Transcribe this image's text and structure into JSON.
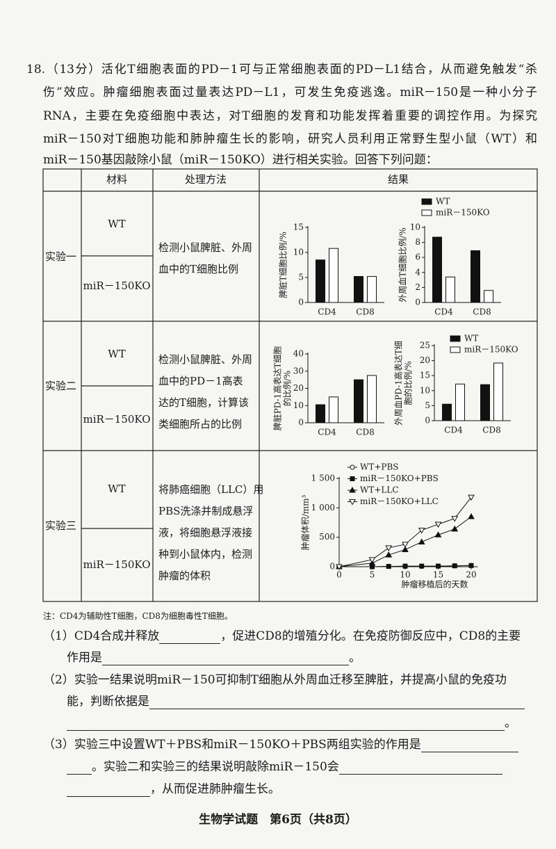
{
  "intro": [
    "18.（13分）活化T细胞表面的PD－1可与正常细胞表面的PD－L1结合，从而避免触发“杀",
    "伤”效应。肿瘤细胞表面过量表达PD－L1，可发生免疫逃逸。miR－150是一种小分子",
    "RNA，主要在免疫细胞中表达，对T细胞的发育和功能发挥着重要的调控作用。为探究",
    "miR－150对T细胞功能和肺肿瘤生长的影响，研究人员利用正常野生型小鼠（WT）和",
    "miR－150基因敲除小鼠（miR－150KO）进行相关实验。回答下列问题："
  ],
  "table": {
    "headers": [
      "材料",
      "处理方法",
      "结果"
    ],
    "experiments": [
      {
        "name": "实验一",
        "materials": [
          "WT",
          "miR－150KO"
        ],
        "method": [
          "检测小鼠脾脏、外周",
          "血中的T细胞比例"
        ],
        "legend": [
          "WT",
          "miR－150KO"
        ],
        "charts": [
          {
            "type": "bar",
            "ylabel": [
              "脾脏T细胞比例/%"
            ],
            "categories": [
              "CD4",
              "CD8"
            ],
            "series": [
              {
                "color": "#111111",
                "values": [
                  8.5,
                  5.2
                ]
              },
              {
                "color": "#ffffff",
                "values": [
                  10.8,
                  5.2
                ]
              }
            ],
            "ylim": [
              0,
              15
            ],
            "yticks": [
              0,
              5,
              10,
              15
            ]
          },
          {
            "type": "bar",
            "ylabel": [
              "外周血T细胞比例/%"
            ],
            "categories": [
              "CD4",
              "CD8"
            ],
            "series": [
              {
                "color": "#111111",
                "values": [
                  8.7,
                  6.9
                ]
              },
              {
                "color": "#ffffff",
                "values": [
                  3.4,
                  1.6
                ]
              }
            ],
            "ylim": [
              0,
              10
            ],
            "yticks": [
              0,
              2,
              4,
              6,
              8,
              10
            ]
          }
        ]
      },
      {
        "name": "实验二",
        "materials": [
          "WT",
          "miR－150KO"
        ],
        "method": [
          "检测小鼠脾脏、外周",
          "血中的PD－1高表",
          "达的T细胞，计算该",
          "类细胞所占的比例"
        ],
        "legend": [
          "WT",
          "miR－150KO"
        ],
        "charts": [
          {
            "type": "bar",
            "ylabel": [
              "脾脏PD-1高表达T细胞",
              "的比例/%"
            ],
            "categories": [
              "CD4",
              "CD8"
            ],
            "series": [
              {
                "color": "#111111",
                "values": [
                  10.5,
                  25
                ]
              },
              {
                "color": "#ffffff",
                "values": [
                  15,
                  27.5
                ]
              }
            ],
            "ylim": [
              0,
              40
            ],
            "yticks": [
              0,
              10,
              20,
              30,
              40
            ]
          },
          {
            "type": "bar",
            "ylabel": [
              "外周血PD-1高表达T细",
              "胞的比例/%"
            ],
            "categories": [
              "CD4",
              "CD8"
            ],
            "series": [
              {
                "color": "#111111",
                "values": [
                  5.5,
                  12
                ]
              },
              {
                "color": "#ffffff",
                "values": [
                  12.2,
                  19.2
                ]
              }
            ],
            "ylim": [
              0,
              25
            ],
            "yticks": [
              0,
              5,
              10,
              15,
              20,
              25
            ]
          }
        ]
      },
      {
        "name": "实验三",
        "materials": [
          "WT",
          "miR－150KO"
        ],
        "method": [
          "将肺癌细胞（LLC）用",
          "PBS洗涤并制成悬浮",
          "液，将细胞悬浮液接",
          "种到小鼠体内，检测",
          "肿瘤的体积"
        ],
        "charts": [
          {
            "type": "line",
            "ylabel": [
              "肿瘤体积/mm³"
            ],
            "xlabel": "肿瘤移植后的天数",
            "color": "#111111",
            "x": [
              0,
              5,
              7.5,
              10,
              12.5,
              15,
              17.5,
              20
            ],
            "series": [
              {
                "name": "WT+PBS",
                "marker": "circle-open",
                "values": [
                  0,
                  0,
                  5,
                  5,
                  5,
                  10,
                  15,
                  20
                ]
              },
              {
                "name": "miR－150KO+PBS",
                "marker": "square",
                "values": [
                  0,
                  0,
                  5,
                  10,
                  10,
                  10,
                  15,
                  20
                ]
              },
              {
                "name": "WT+LLC",
                "marker": "triangle",
                "values": [
                  0,
                  60,
                  200,
                  290,
                  420,
                  540,
                  640,
                  850
                ]
              },
              {
                "name": "miR－150KO+LLC",
                "marker": "triangle-down-open",
                "values": [
                  0,
                  120,
                  320,
                  380,
                  620,
                  720,
                  820,
                  1180
                ]
              }
            ],
            "xlim": [
              0,
              21
            ],
            "xticks": [
              0,
              5,
              10,
              15,
              20
            ],
            "ylim": [
              0,
              1500
            ],
            "yticks": [
              0,
              500,
              {
                "value": 1000,
                "label": "1 000"
              },
              {
                "value": 1500,
                "label": "1 500"
              }
            ]
          }
        ]
      }
    ]
  },
  "note": "注：CD4为辅助性T细胞，CD8为细胞毒性T细胞。",
  "questions": {
    "q1": [
      "（1）CD4合成并释放",
      "，促进CD8的增殖分化。在免疫防御反应中，CD8的主要",
      "作用是",
      "。"
    ],
    "q2": [
      "（2）实验一结果说明miR－150可抑制T细胞从外周血迁移至脾脏，并提高小鼠的免疫功",
      "能，判断依据是",
      "。"
    ],
    "q3": [
      "（3）实验三中设置WT＋PBS和miR－150KO＋PBS两组实验的作用是",
      "。实验二和实验三的结果说明敲除miR－150会",
      "，从而促进肺肿瘤生长。"
    ]
  },
  "footer": "生物学试题　第6页（共8页）"
}
